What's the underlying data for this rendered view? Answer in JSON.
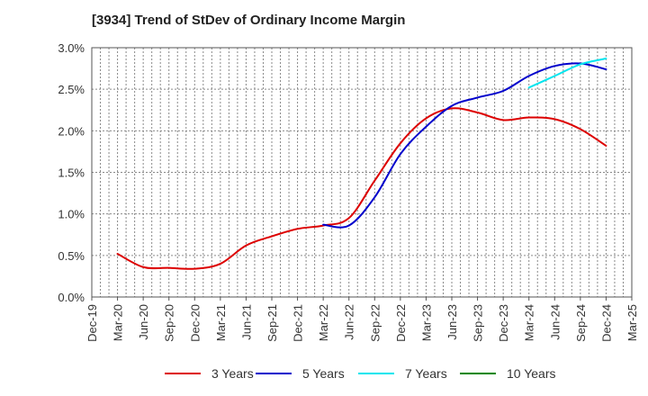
{
  "title": "[3934]  Trend of StDev of Ordinary Income Margin",
  "chart_data": {
    "type": "line",
    "title": "[3934]  Trend of StDev of Ordinary Income Margin",
    "xlabel": "",
    "ylabel": "",
    "categories": [
      "Dec-19",
      "Mar-20",
      "Jun-20",
      "Sep-20",
      "Dec-20",
      "Mar-21",
      "Jun-21",
      "Sep-21",
      "Dec-21",
      "Mar-22",
      "Jun-22",
      "Sep-22",
      "Dec-22",
      "Mar-23",
      "Jun-23",
      "Sep-23",
      "Dec-23",
      "Mar-24",
      "Jun-24",
      "Sep-24",
      "Dec-24",
      "Mar-25"
    ],
    "y_ticks": [
      "0.0%",
      "0.5%",
      "1.0%",
      "1.5%",
      "2.0%",
      "2.5%",
      "3.0%"
    ],
    "ylim": [
      0,
      3.0
    ],
    "y_unit": "%",
    "grid": true,
    "legend_position": "bottom",
    "series": [
      {
        "name": "3 Years",
        "color": "#dd0000",
        "values": [
          null,
          0.52,
          0.36,
          0.35,
          0.34,
          0.4,
          0.62,
          0.73,
          0.82,
          0.86,
          0.95,
          1.4,
          1.85,
          2.15,
          2.27,
          2.22,
          2.13,
          2.16,
          2.14,
          2.02,
          1.82,
          null
        ]
      },
      {
        "name": "5 Years",
        "color": "#0000cc",
        "values": [
          null,
          null,
          null,
          null,
          null,
          null,
          null,
          null,
          null,
          0.87,
          0.86,
          1.2,
          1.72,
          2.05,
          2.3,
          2.4,
          2.48,
          2.66,
          2.78,
          2.81,
          2.74,
          null
        ]
      },
      {
        "name": "7 Years",
        "color": "#00e5ee",
        "values": [
          null,
          null,
          null,
          null,
          null,
          null,
          null,
          null,
          null,
          null,
          null,
          null,
          null,
          null,
          null,
          null,
          null,
          2.52,
          2.66,
          2.8,
          2.87,
          null
        ]
      },
      {
        "name": "10 Years",
        "color": "#008800",
        "values": [
          null,
          null,
          null,
          null,
          null,
          null,
          null,
          null,
          null,
          null,
          null,
          null,
          null,
          null,
          null,
          null,
          null,
          null,
          null,
          null,
          null,
          null
        ]
      }
    ]
  }
}
